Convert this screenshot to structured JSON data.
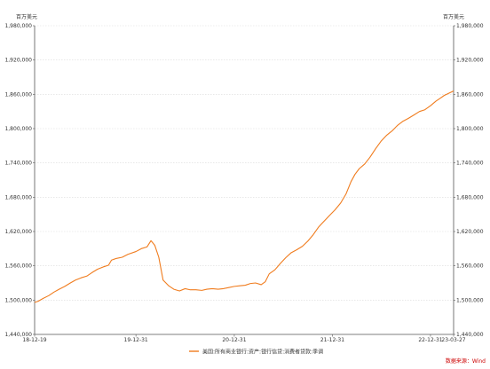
{
  "chart_data": {
    "type": "line",
    "y_unit_left": "百万美元",
    "y_unit_right": "百万美元",
    "y_ticks": [
      "1,440,000",
      "1,500,000",
      "1,560,000",
      "1,620,000",
      "1,680,000",
      "1,740,000",
      "1,800,000",
      "1,860,000",
      "1,920,000",
      "1,980,000"
    ],
    "y_tick_values": [
      1440000,
      1500000,
      1560000,
      1620000,
      1680000,
      1740000,
      1800000,
      1860000,
      1920000,
      1980000
    ],
    "ylim": [
      1440000,
      1980000
    ],
    "x_ticks": [
      "18-12-19",
      "19-12-31",
      "20-12-31",
      "21-12-31",
      "22-12-31",
      "23-03-27"
    ],
    "x_tick_values": [
      "2018-12-19",
      "2019-12-31",
      "2020-12-31",
      "2021-12-31",
      "2022-12-31",
      "2023-03-27"
    ],
    "xlim": [
      "2018-12-19",
      "2023-03-27"
    ],
    "grid": true,
    "legend_position": "bottom-center",
    "series": [
      {
        "name": "美国:所有商业银行:资产:银行信贷:消费者贷款:季调",
        "color": "#f07c1e",
        "points": [
          [
            "2018-12-19",
            1496000
          ],
          [
            "2019-01-01",
            1498000
          ],
          [
            "2019-01-20",
            1503000
          ],
          [
            "2019-02-10",
            1508000
          ],
          [
            "2019-03-01",
            1514000
          ],
          [
            "2019-03-20",
            1519000
          ],
          [
            "2019-04-10",
            1524000
          ],
          [
            "2019-05-01",
            1530000
          ],
          [
            "2019-05-20",
            1535000
          ],
          [
            "2019-06-10",
            1539000
          ],
          [
            "2019-07-01",
            1542000
          ],
          [
            "2019-07-20",
            1548000
          ],
          [
            "2019-08-10",
            1554000
          ],
          [
            "2019-08-31",
            1558000
          ],
          [
            "2019-09-20",
            1561000
          ],
          [
            "2019-10-01",
            1570000
          ],
          [
            "2019-10-20",
            1573000
          ],
          [
            "2019-11-10",
            1575000
          ],
          [
            "2019-12-01",
            1580000
          ],
          [
            "2019-12-31",
            1585000
          ],
          [
            "2020-01-20",
            1590000
          ],
          [
            "2020-02-10",
            1593000
          ],
          [
            "2020-02-25",
            1604000
          ],
          [
            "2020-03-10",
            1596000
          ],
          [
            "2020-03-25",
            1575000
          ],
          [
            "2020-04-10",
            1535000
          ],
          [
            "2020-05-01",
            1525000
          ],
          [
            "2020-05-20",
            1519000
          ],
          [
            "2020-06-10",
            1516000
          ],
          [
            "2020-07-01",
            1520000
          ],
          [
            "2020-07-20",
            1518000
          ],
          [
            "2020-08-10",
            1518000
          ],
          [
            "2020-09-01",
            1517000
          ],
          [
            "2020-09-20",
            1519000
          ],
          [
            "2020-10-10",
            1520000
          ],
          [
            "2020-11-01",
            1519000
          ],
          [
            "2020-11-20",
            1520000
          ],
          [
            "2020-12-10",
            1522000
          ],
          [
            "2020-12-31",
            1524000
          ],
          [
            "2021-01-20",
            1525000
          ],
          [
            "2021-02-10",
            1526000
          ],
          [
            "2021-03-01",
            1529000
          ],
          [
            "2021-03-20",
            1530000
          ],
          [
            "2021-04-10",
            1527000
          ],
          [
            "2021-04-25",
            1532000
          ],
          [
            "2021-05-10",
            1546000
          ],
          [
            "2021-05-31",
            1553000
          ],
          [
            "2021-06-20",
            1564000
          ],
          [
            "2021-07-10",
            1574000
          ],
          [
            "2021-07-31",
            1583000
          ],
          [
            "2021-08-20",
            1588000
          ],
          [
            "2021-09-10",
            1594000
          ],
          [
            "2021-09-30",
            1603000
          ],
          [
            "2021-10-20",
            1614000
          ],
          [
            "2021-11-10",
            1628000
          ],
          [
            "2021-11-30",
            1638000
          ],
          [
            "2021-12-20",
            1648000
          ],
          [
            "2022-01-10",
            1658000
          ],
          [
            "2022-01-31",
            1670000
          ],
          [
            "2022-02-20",
            1686000
          ],
          [
            "2022-03-10",
            1707000
          ],
          [
            "2022-03-25",
            1720000
          ],
          [
            "2022-04-10",
            1730000
          ],
          [
            "2022-04-30",
            1738000
          ],
          [
            "2022-05-20",
            1750000
          ],
          [
            "2022-06-10",
            1765000
          ],
          [
            "2022-06-30",
            1778000
          ],
          [
            "2022-07-20",
            1788000
          ],
          [
            "2022-08-10",
            1796000
          ],
          [
            "2022-08-31",
            1806000
          ],
          [
            "2022-09-20",
            1813000
          ],
          [
            "2022-10-10",
            1818000
          ],
          [
            "2022-10-31",
            1824000
          ],
          [
            "2022-11-20",
            1830000
          ],
          [
            "2022-12-10",
            1833000
          ],
          [
            "2022-12-31",
            1840000
          ],
          [
            "2023-01-20",
            1848000
          ],
          [
            "2023-02-05",
            1853000
          ],
          [
            "2023-02-20",
            1858000
          ],
          [
            "2023-03-10",
            1862000
          ],
          [
            "2023-03-27",
            1866000
          ]
        ]
      }
    ],
    "source": "数据来源：Wind"
  }
}
